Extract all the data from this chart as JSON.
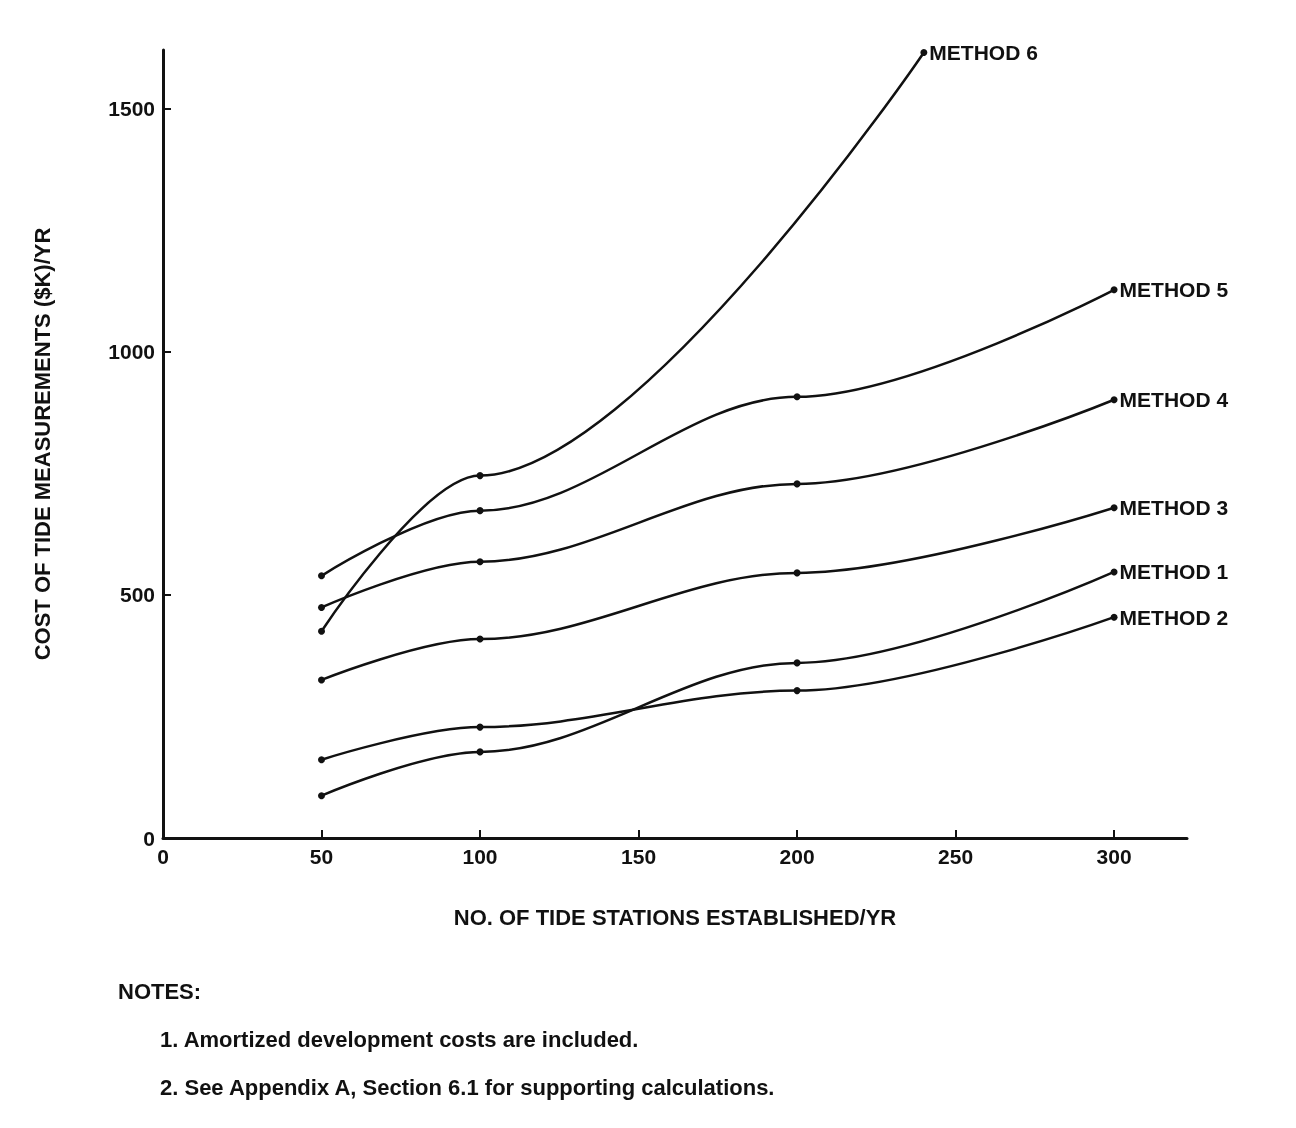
{
  "chart_data": {
    "type": "line",
    "xlabel": "NO. OF TIDE STATIONS ESTABLISHED/YR",
    "ylabel": "COST OF TIDE MEASUREMENTS ($K)/YR",
    "xlim": [
      0,
      323
    ],
    "ylim": [
      0,
      1620
    ],
    "xticks": [
      0,
      50,
      100,
      150,
      200,
      250,
      300
    ],
    "yticks": [
      0,
      500,
      1000,
      1500
    ],
    "grid": false,
    "legend": false,
    "marker": "circle",
    "line_style": "solid",
    "series": [
      {
        "name": "METHOD 6",
        "color": "#111111",
        "x": [
          50,
          100,
          240
        ],
        "values": [
          425,
          745,
          1615
        ]
      },
      {
        "name": "METHOD 5",
        "color": "#111111",
        "x": [
          50,
          100,
          200,
          300
        ],
        "values": [
          539,
          673,
          907,
          1127
        ]
      },
      {
        "name": "METHOD 4",
        "color": "#111111",
        "x": [
          50,
          100,
          200,
          300
        ],
        "values": [
          474,
          568,
          728,
          901
        ]
      },
      {
        "name": "METHOD 3",
        "color": "#111111",
        "x": [
          50,
          100,
          200,
          300
        ],
        "values": [
          325,
          409,
          545,
          679
        ]
      },
      {
        "name": "METHOD 1",
        "color": "#111111",
        "x": [
          50,
          100,
          200,
          300
        ],
        "values": [
          87,
          177,
          360,
          547
        ]
      },
      {
        "name": "METHOD 2",
        "color": "#111111",
        "x": [
          50,
          100,
          200,
          300
        ],
        "values": [
          161,
          228,
          303,
          454
        ]
      }
    ],
    "annotations": [
      "NOTES:",
      "1. Amortized development costs are included.",
      "2. See Appendix A, Section 6.1 for supporting calculations."
    ]
  }
}
